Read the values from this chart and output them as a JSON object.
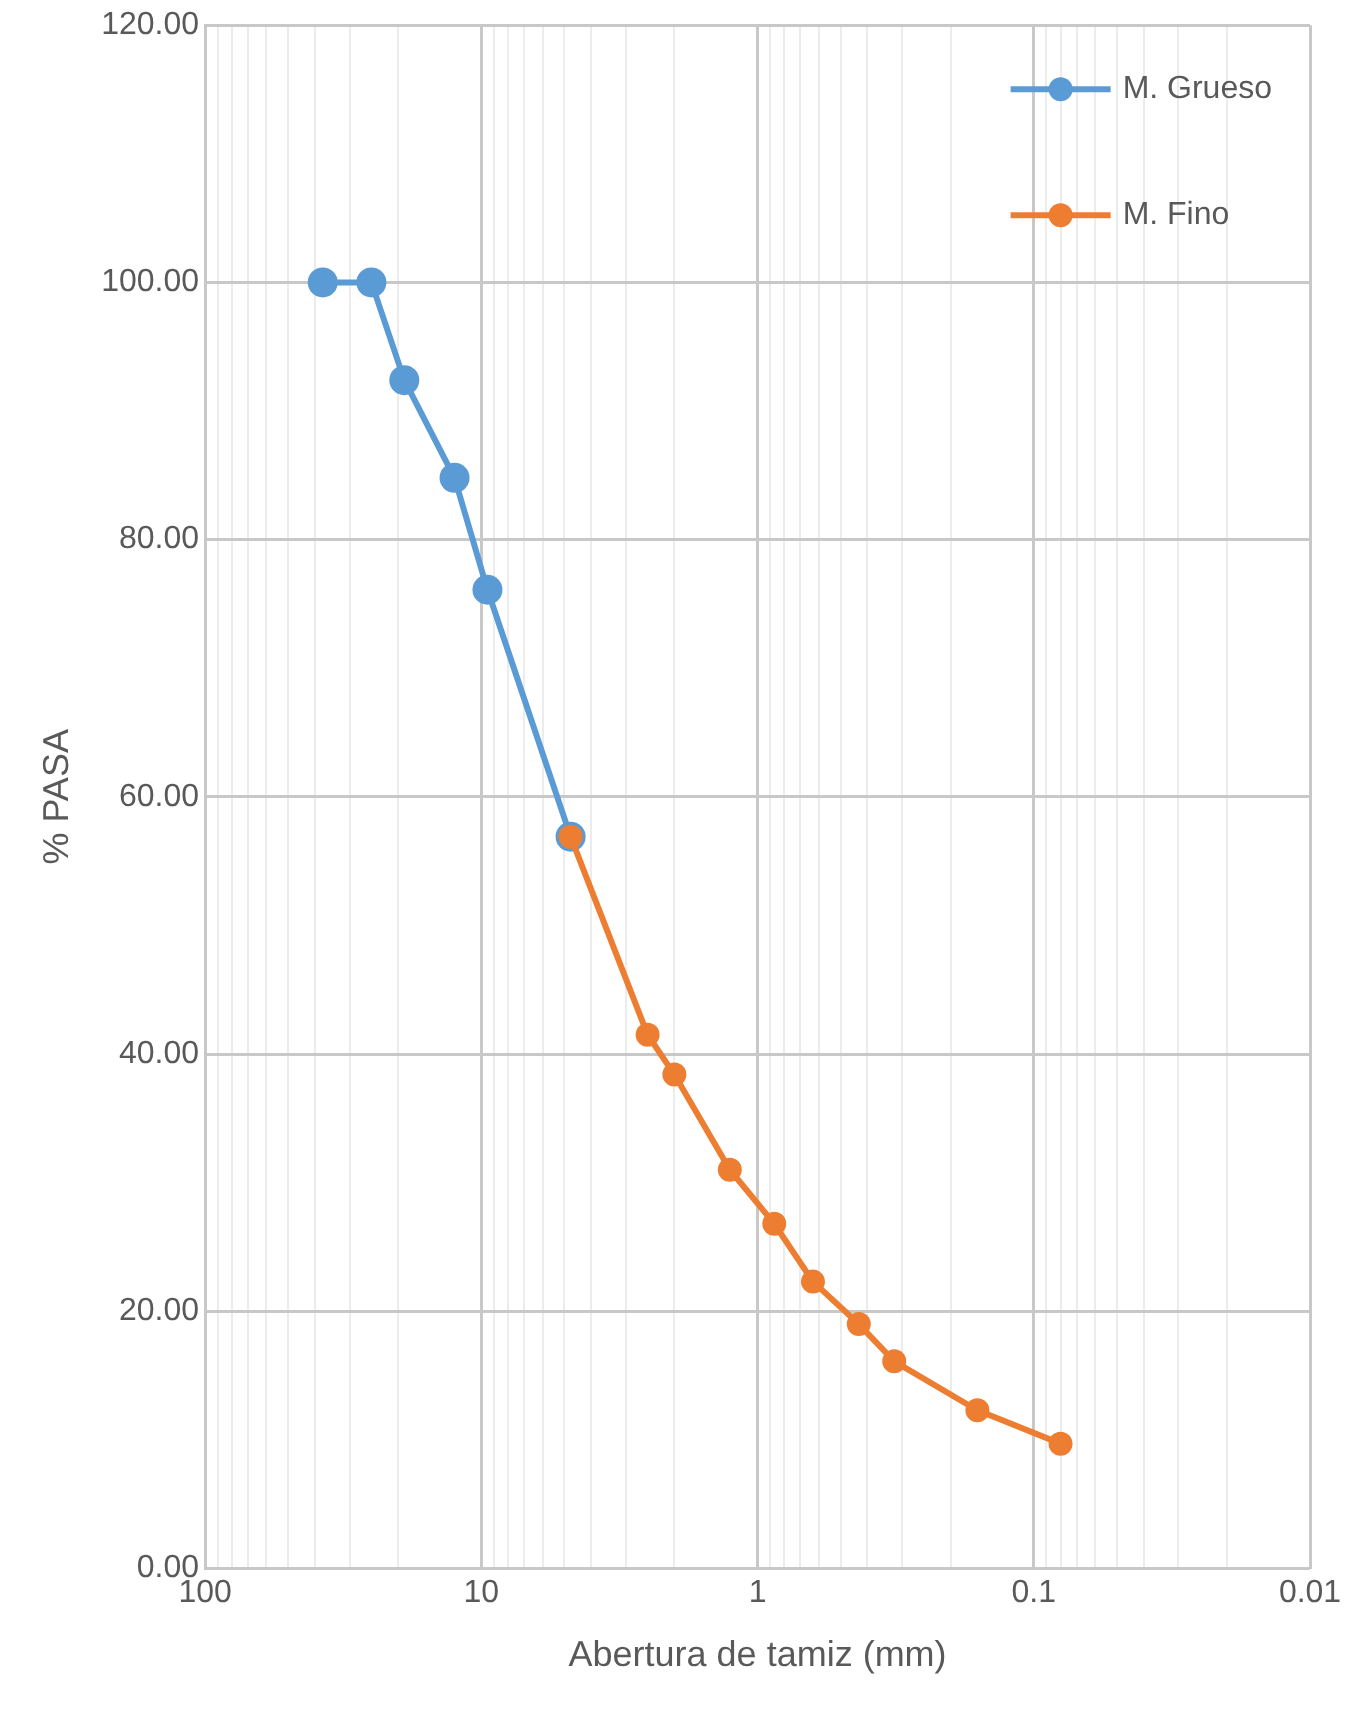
{
  "chart_data": {
    "type": "line",
    "xlabel": "Abertura de tamiz (mm)",
    "ylabel": "% PASA",
    "xlim": [
      100,
      0.01
    ],
    "ylim": [
      0,
      120
    ],
    "log": "x",
    "grid": true,
    "legend": "top right",
    "marker": "circle",
    "line_style": "solid",
    "xticks": [
      100,
      {
        "value": 90,
        "label": null
      },
      {
        "value": 80,
        "label": null
      },
      {
        "value": 70,
        "label": null
      },
      {
        "value": 60,
        "label": null
      },
      {
        "value": 50,
        "label": null
      },
      {
        "value": 40,
        "label": null
      },
      {
        "value": 30,
        "label": null
      },
      {
        "value": 20,
        "label": null
      },
      10,
      {
        "value": 9,
        "label": null
      },
      {
        "value": 8,
        "label": null
      },
      {
        "value": 7,
        "label": null
      },
      {
        "value": 6,
        "label": null
      },
      {
        "value": 5,
        "label": null
      },
      {
        "value": 4,
        "label": null
      },
      {
        "value": 3,
        "label": null
      },
      {
        "value": 2,
        "label": null
      },
      1,
      {
        "value": 0.9,
        "label": null
      },
      {
        "value": 0.8,
        "label": null
      },
      {
        "value": 0.7,
        "label": null
      },
      {
        "value": 0.6,
        "label": null
      },
      {
        "value": 0.5,
        "label": null
      },
      {
        "value": 0.4,
        "label": null
      },
      {
        "value": 0.3,
        "label": null
      },
      {
        "value": 0.2,
        "label": null
      },
      0.1,
      {
        "value": 0.09,
        "label": null
      },
      {
        "value": 0.08,
        "label": null
      },
      {
        "value": 0.07,
        "label": null
      },
      {
        "value": 0.06,
        "label": null
      },
      {
        "value": 0.05,
        "label": null
      },
      {
        "value": 0.04,
        "label": null
      },
      {
        "value": 0.03,
        "label": null
      },
      {
        "value": 0.02,
        "label": null
      },
      0.01
    ],
    "yticks": [
      {
        "value": 0,
        "label": "0.00"
      },
      {
        "value": 20,
        "label": "20.00"
      },
      {
        "value": 40,
        "label": "40.00"
      },
      {
        "value": 60,
        "label": "60.00"
      },
      {
        "value": 80,
        "label": "80.00"
      },
      {
        "value": 100,
        "label": "100.00"
      },
      {
        "value": 120,
        "label": "120.00"
      }
    ],
    "series": [
      {
        "name": "M. Grueso",
        "color": "#5b9bd5",
        "x": [
          37.5,
          25,
          19,
          12.5,
          9.5,
          4.75
        ],
        "values": [
          100,
          100,
          92.4,
          84.8,
          76.1,
          56.9
        ]
      },
      {
        "name": "M. Fino",
        "color": "#ed7d31",
        "x": [
          4.75,
          2.5,
          2,
          1.26,
          0.87,
          0.63,
          0.43,
          0.32,
          0.16,
          0.08
        ],
        "values": [
          56.9,
          41.5,
          38.4,
          31,
          26.8,
          22.3,
          19,
          16.1,
          12.3,
          9.7
        ]
      }
    ]
  }
}
